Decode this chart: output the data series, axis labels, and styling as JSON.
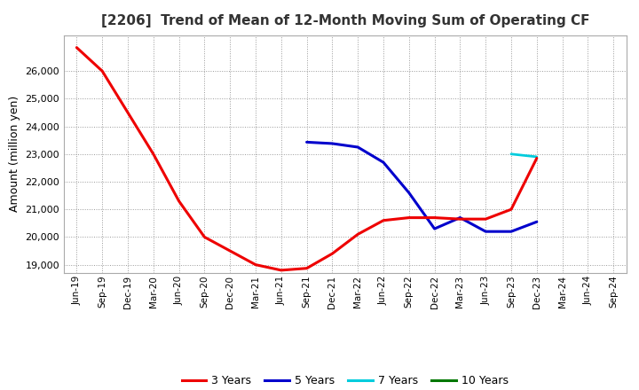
{
  "title": "[2206]  Trend of Mean of 12-Month Moving Sum of Operating CF",
  "ylabel": "Amount (million yen)",
  "background_color": "#ffffff",
  "plot_bg_color": "#ffffff",
  "grid_color": "#999999",
  "x_labels": [
    "Jun-19",
    "Sep-19",
    "Dec-19",
    "Mar-20",
    "Jun-20",
    "Sep-20",
    "Dec-20",
    "Mar-21",
    "Jun-21",
    "Sep-21",
    "Dec-21",
    "Mar-22",
    "Jun-22",
    "Sep-22",
    "Dec-22",
    "Mar-23",
    "Jun-23",
    "Sep-23",
    "Dec-23",
    "Mar-24",
    "Jun-24",
    "Sep-24"
  ],
  "ylim": [
    18700,
    27300
  ],
  "yticks": [
    19000,
    20000,
    21000,
    22000,
    23000,
    24000,
    25000,
    26000
  ],
  "series": {
    "3yr": {
      "color": "#ee0000",
      "label": "3 Years",
      "linewidth": 2.2,
      "values": [
        26850,
        26000,
        24500,
        23000,
        21300,
        20000,
        19500,
        19000,
        18800,
        18870,
        19400,
        20100,
        20600,
        20700,
        20700,
        20650,
        20650,
        21000,
        22850,
        null,
        null,
        null
      ]
    },
    "5yr": {
      "color": "#0000cc",
      "label": "5 Years",
      "linewidth": 2.2,
      "values": [
        null,
        null,
        null,
        null,
        null,
        null,
        null,
        null,
        null,
        23430,
        23380,
        23250,
        22700,
        21600,
        20300,
        20700,
        20200,
        20200,
        20550,
        null,
        null,
        null
      ]
    },
    "7yr": {
      "color": "#00ccdd",
      "label": "7 Years",
      "linewidth": 2.0,
      "values": [
        null,
        null,
        null,
        null,
        null,
        null,
        null,
        null,
        null,
        null,
        null,
        null,
        null,
        null,
        null,
        null,
        null,
        23000,
        22900,
        null,
        null,
        null
      ]
    },
    "10yr": {
      "color": "#007700",
      "label": "10 Years",
      "linewidth": 2.0,
      "values": [
        null,
        null,
        null,
        null,
        null,
        null,
        null,
        null,
        null,
        null,
        null,
        null,
        null,
        null,
        null,
        null,
        null,
        null,
        null,
        null,
        null,
        null
      ]
    }
  }
}
